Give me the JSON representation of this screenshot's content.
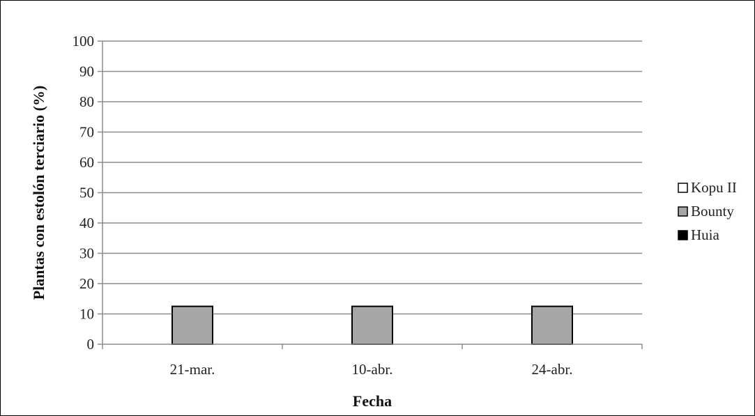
{
  "chart_data": {
    "type": "bar",
    "categories": [
      "21-mar.",
      "10-abr.",
      "24-abr."
    ],
    "series": [
      {
        "name": "Kopu II",
        "color": "#ffffff",
        "values": [
          0,
          0,
          0
        ]
      },
      {
        "name": "Bounty",
        "color": "#a6a6a6",
        "values": [
          12.5,
          12.5,
          12.5
        ]
      },
      {
        "name": "Huia",
        "color": "#000000",
        "values": [
          0,
          0,
          0
        ]
      }
    ],
    "title": "",
    "xlabel": "Fecha",
    "ylabel": "Plantas con estolón terciario (%)",
    "ylim": [
      0,
      100
    ],
    "yticks": [
      0,
      10,
      20,
      30,
      40,
      50,
      60,
      70,
      80,
      90,
      100
    ],
    "grid": true,
    "legend_position": "right"
  }
}
